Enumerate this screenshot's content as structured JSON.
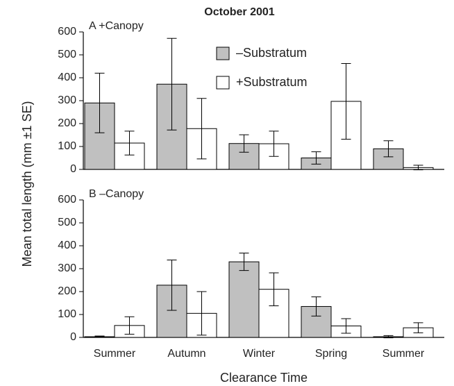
{
  "chart_data": [
    {
      "type": "bar",
      "title": "October 2001",
      "panel_label": "A +Canopy",
      "y_label": "Mean total length (mm ±1 SE)",
      "categories": [
        null,
        null,
        null,
        null,
        null
      ],
      "series": [
        {
          "name": "–Substratum",
          "color": "#c0c0c0",
          "values": [
            290,
            372,
            113,
            50,
            90
          ],
          "errors": [
            130,
            200,
            38,
            27,
            35
          ]
        },
        {
          "name": "+Substratum",
          "color": "#ffffff",
          "values": [
            115,
            178,
            112,
            297,
            8
          ],
          "errors": [
            52,
            132,
            55,
            165,
            10
          ]
        }
      ],
      "ylim": [
        0,
        600
      ],
      "yticks": [
        0,
        100,
        200,
        300,
        400,
        500,
        600
      ]
    },
    {
      "type": "bar",
      "panel_label": "B –Canopy",
      "x_label": "Clearance Time",
      "categories": [
        "Summer",
        "Autumn",
        "Winter",
        "Spring",
        "Summer"
      ],
      "series": [
        {
          "color": "#c0c0c0",
          "values": [
            3,
            228,
            330,
            135,
            3
          ],
          "errors": [
            3,
            110,
            38,
            42,
            5
          ]
        },
        {
          "color": "#ffffff",
          "values": [
            52,
            105,
            210,
            50,
            42
          ],
          "errors": [
            38,
            95,
            72,
            32,
            22
          ]
        }
      ],
      "ylim": [
        0,
        600
      ],
      "yticks": [
        0,
        100,
        200,
        300,
        400,
        500,
        600
      ]
    }
  ]
}
